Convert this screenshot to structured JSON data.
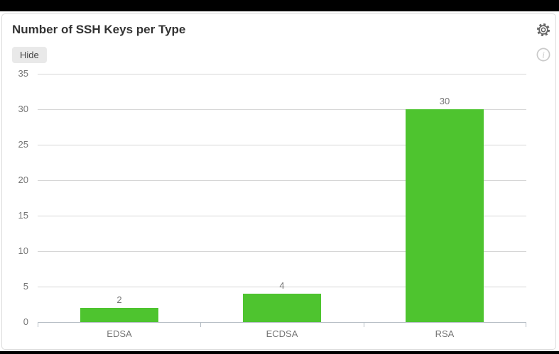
{
  "panel": {
    "title": "Number of SSH Keys per Type",
    "hide_button": "Hide"
  },
  "icons": {
    "settings": "gear-icon",
    "info": "info-icon"
  },
  "chart_data": {
    "type": "bar",
    "title": "Number of SSH Keys per Type",
    "categories": [
      "EDSA",
      "ECDSA",
      "RSA"
    ],
    "values": [
      2,
      4,
      30
    ],
    "value_labels": [
      "2",
      "4",
      "30"
    ],
    "xlabel": "",
    "ylabel": "",
    "ylim": [
      0,
      35
    ],
    "ytick_step": 5,
    "yticks": [
      0,
      5,
      10,
      15,
      20,
      25,
      30,
      35
    ],
    "grid": true,
    "legend_position": "none",
    "bar_color": "#4ec42f"
  },
  "colors": {
    "bar": "#4ec42f",
    "grid_line": "#d6d6d6",
    "axis_line": "#b7bfc6",
    "tick_label": "#757575",
    "value_label": "#757575",
    "title_text": "#333333",
    "button_bg": "#e9e9e9",
    "button_text": "#444444",
    "gear_icon": "#666666",
    "info_icon": "#c9c9c9",
    "frame_bar": "#000000",
    "card_border": "#dcdcdc"
  }
}
